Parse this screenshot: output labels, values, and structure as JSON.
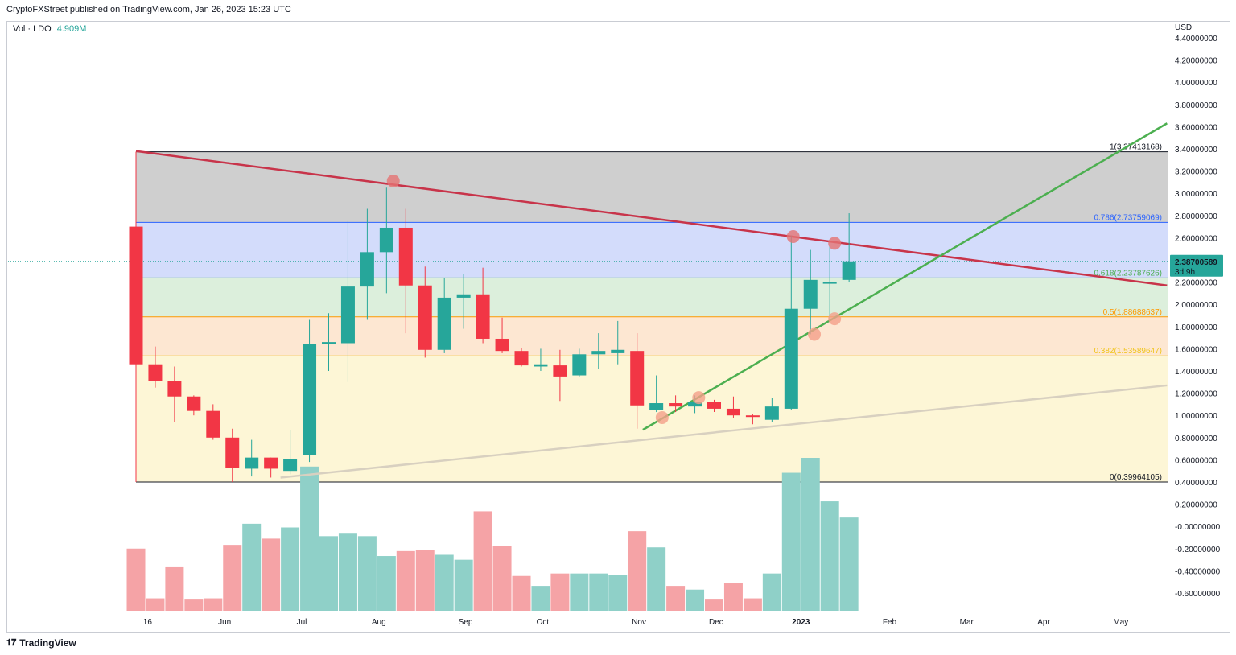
{
  "header": {
    "attribution": "CryptoFXStreet published on TradingView.com, Jan 26, 2023 15:23 UTC"
  },
  "indicator": {
    "name": "Vol · LDO",
    "value": "4.909M"
  },
  "axis_currency": "USD",
  "footer": {
    "brand": "TradingView",
    "logo_glyph": "𝟏𝟕"
  },
  "price_tag": {
    "price": "2.38700589",
    "countdown": "3d 9h",
    "color": "#26a69a"
  },
  "colors": {
    "up": "#26a69a",
    "down": "#f23645",
    "vol_up": "#8fd0c8",
    "vol_down": "#f5a3a6",
    "resistance": "#c8344a",
    "trend_up": "#4caf50",
    "support_line": "#d8d0c0"
  },
  "chart_data": {
    "type": "candlestick",
    "timeframe": "weekly",
    "ylim": [
      -0.7,
      4.5
    ],
    "y_ticks": [
      "4.40000000",
      "4.20000000",
      "4.00000000",
      "3.80000000",
      "3.60000000",
      "3.40000000",
      "3.20000000",
      "3.00000000",
      "2.80000000",
      "2.60000000",
      "2.40000000",
      "2.20000000",
      "2.00000000",
      "1.80000000",
      "1.60000000",
      "1.40000000",
      "1.20000000",
      "1.00000000",
      "0.80000000",
      "0.60000000",
      "0.40000000",
      "0.20000000",
      "-0.00000000",
      "-0.20000000",
      "-0.40000000",
      "-0.60000000"
    ],
    "x_ticks": [
      {
        "label": "16",
        "i": 0.6
      },
      {
        "label": "Jun",
        "i": 4.6
      },
      {
        "label": "Jul",
        "i": 8.6
      },
      {
        "label": "Aug",
        "i": 12.6
      },
      {
        "label": "Sep",
        "i": 17.1
      },
      {
        "label": "Oct",
        "i": 21.1
      },
      {
        "label": "Nov",
        "i": 26.1
      },
      {
        "label": "Dec",
        "i": 30.1
      },
      {
        "label": "2023",
        "i": 34.5
      },
      {
        "label": "Feb",
        "i": 39.1
      },
      {
        "label": "Mar",
        "i": 43.1
      },
      {
        "label": "Apr",
        "i": 47.1
      },
      {
        "label": "May",
        "i": 51.1
      }
    ],
    "candles": [
      {
        "o": 2.7,
        "h": 3.37,
        "l": 1.2,
        "c": 1.46
      },
      {
        "o": 1.46,
        "h": 1.62,
        "l": 1.25,
        "c": 1.31
      },
      {
        "o": 1.31,
        "h": 1.44,
        "l": 0.94,
        "c": 1.17
      },
      {
        "o": 1.17,
        "h": 1.18,
        "l": 1.0,
        "c": 1.04
      },
      {
        "o": 1.04,
        "h": 1.1,
        "l": 0.78,
        "c": 0.8
      },
      {
        "o": 0.8,
        "h": 0.88,
        "l": 0.4,
        "c": 0.53
      },
      {
        "o": 0.52,
        "h": 0.78,
        "l": 0.45,
        "c": 0.62
      },
      {
        "o": 0.62,
        "h": 0.62,
        "l": 0.44,
        "c": 0.52
      },
      {
        "o": 0.5,
        "h": 0.87,
        "l": 0.47,
        "c": 0.61
      },
      {
        "o": 0.64,
        "h": 1.86,
        "l": 0.58,
        "c": 1.64
      },
      {
        "o": 1.64,
        "h": 1.92,
        "l": 1.4,
        "c": 1.66
      },
      {
        "o": 1.65,
        "h": 2.75,
        "l": 1.3,
        "c": 2.16
      },
      {
        "o": 2.16,
        "h": 2.86,
        "l": 1.86,
        "c": 2.47
      },
      {
        "o": 2.47,
        "h": 3.05,
        "l": 2.1,
        "c": 2.69
      },
      {
        "o": 2.69,
        "h": 2.86,
        "l": 1.74,
        "c": 2.17
      },
      {
        "o": 2.17,
        "h": 2.34,
        "l": 1.52,
        "c": 1.59
      },
      {
        "o": 1.59,
        "h": 2.24,
        "l": 1.56,
        "c": 2.06
      },
      {
        "o": 2.06,
        "h": 2.27,
        "l": 1.78,
        "c": 2.09
      },
      {
        "o": 2.09,
        "h": 2.33,
        "l": 1.65,
        "c": 1.69
      },
      {
        "o": 1.69,
        "h": 1.88,
        "l": 1.56,
        "c": 1.58
      },
      {
        "o": 1.58,
        "h": 1.61,
        "l": 1.44,
        "c": 1.45
      },
      {
        "o": 1.44,
        "h": 1.6,
        "l": 1.4,
        "c": 1.46
      },
      {
        "o": 1.45,
        "h": 1.59,
        "l": 1.13,
        "c": 1.35
      },
      {
        "o": 1.36,
        "h": 1.6,
        "l": 1.35,
        "c": 1.55
      },
      {
        "o": 1.55,
        "h": 1.74,
        "l": 1.42,
        "c": 1.58
      },
      {
        "o": 1.56,
        "h": 1.85,
        "l": 1.46,
        "c": 1.59
      },
      {
        "o": 1.58,
        "h": 1.74,
        "l": 0.88,
        "c": 1.09
      },
      {
        "o": 1.05,
        "h": 1.36,
        "l": 1.03,
        "c": 1.11
      },
      {
        "o": 1.11,
        "h": 1.18,
        "l": 1.03,
        "c": 1.08
      },
      {
        "o": 1.08,
        "h": 1.18,
        "l": 1.02,
        "c": 1.12
      },
      {
        "o": 1.12,
        "h": 1.14,
        "l": 1.03,
        "c": 1.06
      },
      {
        "o": 1.06,
        "h": 1.17,
        "l": 0.98,
        "c": 1.0
      },
      {
        "o": 1.0,
        "h": 1.01,
        "l": 0.92,
        "c": 0.99
      },
      {
        "o": 0.96,
        "h": 1.16,
        "l": 0.94,
        "c": 1.08
      },
      {
        "o": 1.06,
        "h": 2.62,
        "l": 1.05,
        "c": 1.96
      },
      {
        "o": 1.96,
        "h": 2.49,
        "l": 1.73,
        "c": 2.22
      },
      {
        "o": 2.2,
        "h": 2.52,
        "l": 1.87,
        "c": 2.2
      },
      {
        "o": 2.22,
        "h": 2.82,
        "l": 2.2,
        "c": 2.387
      }
    ],
    "volume_relative": [
      0.5,
      0.1,
      0.35,
      0.09,
      0.1,
      0.53,
      0.7,
      0.58,
      0.67,
      1.16,
      0.6,
      0.62,
      0.6,
      0.44,
      0.48,
      0.49,
      0.45,
      0.41,
      0.8,
      0.52,
      0.28,
      0.2,
      0.3,
      0.3,
      0.3,
      0.29,
      0.64,
      0.51,
      0.2,
      0.17,
      0.09,
      0.22,
      0.1,
      0.3,
      1.11,
      1.23,
      0.88,
      0.75
    ],
    "fibonacci": [
      {
        "label": "1(3.37413168)",
        "value": 3.37413168,
        "color": "#131722",
        "fill": "#cfcfcf"
      },
      {
        "label": "0.786(2.73759069)",
        "value": 2.73759069,
        "color": "#2962ff",
        "fill": "#d3dcfb"
      },
      {
        "label": "0.618(2.23787626)",
        "value": 2.23787626,
        "color": "#4caf50",
        "fill": "#dcefdc"
      },
      {
        "label": "0.5(1.88688637)",
        "value": 1.88688637,
        "color": "#ff9800",
        "fill": "#fde7d2"
      },
      {
        "label": "0.382(1.53589647)",
        "value": 1.53589647,
        "color": "#f0c419",
        "fill": "#fdf6d6"
      },
      {
        "label": "0(0.39964105)",
        "value": 0.39964105,
        "color": "#131722",
        "fill": null
      }
    ],
    "trendlines": [
      {
        "name": "resistance",
        "from": {
          "i": 0,
          "v": 3.38
        },
        "to": {
          "i": 53.5,
          "v": 2.17
        },
        "color": "#c8344a"
      },
      {
        "name": "uptrend",
        "from": {
          "i": 26.3,
          "v": 0.87
        },
        "to": {
          "i": 53.5,
          "v": 3.63
        },
        "color": "#4caf50"
      },
      {
        "name": "support",
        "from": {
          "i": 7.5,
          "v": 0.44
        },
        "to": {
          "i": 53.5,
          "v": 1.27
        },
        "color": "#d8d0c0"
      }
    ],
    "markers": [
      {
        "i": 13.35,
        "v": 3.11,
        "color": "#e57373"
      },
      {
        "i": 34.1,
        "v": 2.61,
        "color": "#e57373"
      },
      {
        "i": 36.25,
        "v": 2.55,
        "color": "#e57373"
      },
      {
        "i": 35.2,
        "v": 1.73,
        "color": "#f4a08a"
      },
      {
        "i": 36.25,
        "v": 1.87,
        "color": "#f4a08a"
      },
      {
        "i": 27.3,
        "v": 0.98,
        "color": "#f4a08a"
      },
      {
        "i": 29.2,
        "v": 1.16,
        "color": "#f4a08a"
      }
    ],
    "last_price": 2.387
  }
}
